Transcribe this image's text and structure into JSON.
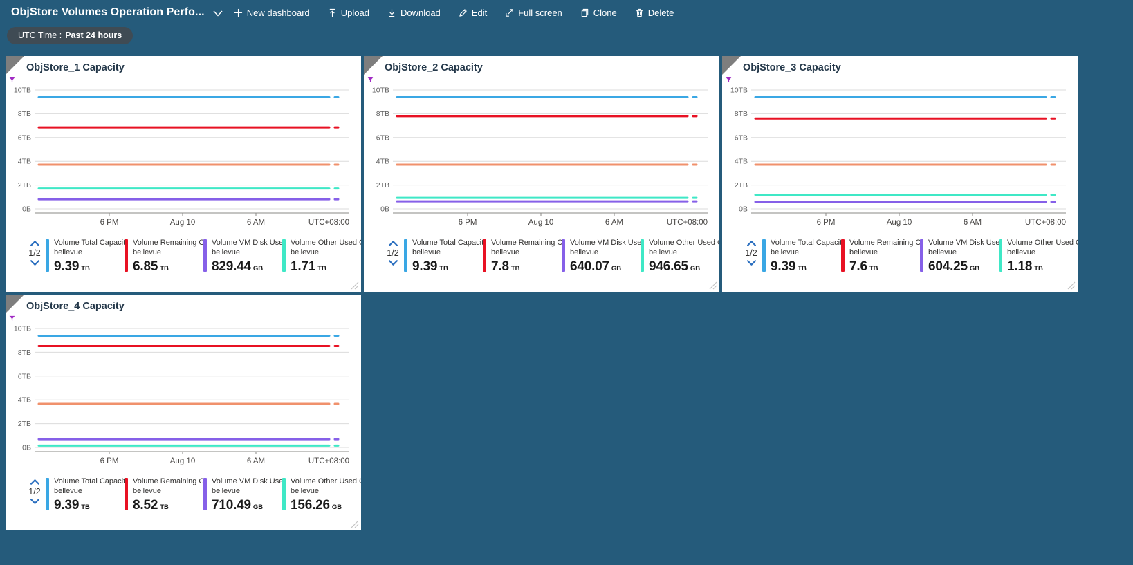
{
  "toolbar": {
    "title": "ObjStore Volumes Operation Perfo...",
    "buttons": [
      {
        "id": "new-dashboard",
        "label": "New dashboard",
        "icon": "plus-icon"
      },
      {
        "id": "upload",
        "label": "Upload",
        "icon": "upload-icon"
      },
      {
        "id": "download",
        "label": "Download",
        "icon": "download-icon"
      },
      {
        "id": "edit",
        "label": "Edit",
        "icon": "edit-icon"
      },
      {
        "id": "fullscreen",
        "label": "Full screen",
        "icon": "fullscreen-icon"
      },
      {
        "id": "clone",
        "label": "Clone",
        "icon": "clone-icon"
      },
      {
        "id": "delete",
        "label": "Delete",
        "icon": "delete-icon"
      }
    ]
  },
  "time_filter": {
    "label": "UTC Time :",
    "value": "Past 24 hours"
  },
  "colors": {
    "background": "#255B7B",
    "pill": "#3F4B54",
    "blue": "#3AA7E4",
    "red": "#E81123",
    "orange": "#F0916C",
    "teal": "#3FE8C6",
    "purple": "#8660E8",
    "funnel": "#A12BC4"
  },
  "axis": {
    "y_ticks": [
      "10TB",
      "8TB",
      "6TB",
      "4TB",
      "2TB",
      "0B"
    ],
    "y_tick_values_tb": [
      10,
      8,
      6,
      4,
      2,
      0
    ],
    "x_ticks": [
      "6 PM",
      "Aug 10",
      "6 AM"
    ],
    "x_right_label": "UTC+08:00"
  },
  "charts": [
    {
      "title": "ObjStore_1 Capacity",
      "pagination": "1/2",
      "legend": [
        {
          "label": "Volume Total Capacit...",
          "sub": "bellevue",
          "value": "9.39",
          "unit": "TB",
          "color": "#3AA7E4"
        },
        {
          "label": "Volume Remaining Cap...",
          "sub": "bellevue",
          "value": "6.85",
          "unit": "TB",
          "color": "#E81123"
        },
        {
          "label": "Volume VM Disk Used ...",
          "sub": "bellevue",
          "value": "829.44",
          "unit": "GB",
          "color": "#8660E8"
        },
        {
          "label": "Volume Other Used Ca...",
          "sub": "bellevue",
          "value": "1.71",
          "unit": "TB",
          "color": "#3FE8C6"
        }
      ]
    },
    {
      "title": "ObjStore_2 Capacity",
      "pagination": "1/2",
      "legend": [
        {
          "label": "Volume Total Capacit...",
          "sub": "bellevue",
          "value": "9.39",
          "unit": "TB",
          "color": "#3AA7E4"
        },
        {
          "label": "Volume Remaining Cap...",
          "sub": "bellevue",
          "value": "7.8",
          "unit": "TB",
          "color": "#E81123"
        },
        {
          "label": "Volume VM Disk Used ...",
          "sub": "bellevue",
          "value": "640.07",
          "unit": "GB",
          "color": "#8660E8"
        },
        {
          "label": "Volume Other Used Ca...",
          "sub": "bellevue",
          "value": "946.65",
          "unit": "GB",
          "color": "#3FE8C6"
        }
      ]
    },
    {
      "title": "ObjStore_3 Capacity",
      "pagination": "1/2",
      "legend": [
        {
          "label": "Volume Total Capacit...",
          "sub": "bellevue",
          "value": "9.39",
          "unit": "TB",
          "color": "#3AA7E4"
        },
        {
          "label": "Volume Remaining Cap...",
          "sub": "bellevue",
          "value": "7.6",
          "unit": "TB",
          "color": "#E81123"
        },
        {
          "label": "Volume VM Disk Used ...",
          "sub": "bellevue",
          "value": "604.25",
          "unit": "GB",
          "color": "#8660E8"
        },
        {
          "label": "Volume Other Used Ca...",
          "sub": "bellevue",
          "value": "1.18",
          "unit": "TB",
          "color": "#3FE8C6"
        }
      ]
    },
    {
      "title": "ObjStore_4 Capacity",
      "pagination": "1/2",
      "legend": [
        {
          "label": "Volume Total Capacit...",
          "sub": "bellevue",
          "value": "9.39",
          "unit": "TB",
          "color": "#3AA7E4"
        },
        {
          "label": "Volume Remaining Cap...",
          "sub": "bellevue",
          "value": "8.52",
          "unit": "TB",
          "color": "#E81123"
        },
        {
          "label": "Volume VM Disk Used ...",
          "sub": "bellevue",
          "value": "710.49",
          "unit": "GB",
          "color": "#8660E8"
        },
        {
          "label": "Volume Other Used Ca...",
          "sub": "bellevue",
          "value": "156.26",
          "unit": "GB",
          "color": "#3FE8C6"
        }
      ]
    }
  ],
  "chart_data": [
    {
      "type": "line",
      "title": "ObjStore_1 Capacity",
      "x_ticks": [
        "6 PM",
        "Aug 10",
        "6 AM"
      ],
      "x_right_label": "UTC+08:00",
      "ylim_tb": [
        0,
        10
      ],
      "y_ticks": [
        "0B",
        "2TB",
        "4TB",
        "6TB",
        "8TB",
        "10TB"
      ],
      "series": [
        {
          "name": "Volume Total Capacit...",
          "color": "#3AA7E4",
          "constant_value_tb": 9.39
        },
        {
          "name": "Volume Remaining Cap...",
          "color": "#E81123",
          "constant_value_tb": 6.85
        },
        {
          "name": "",
          "color": "#F0916C",
          "constant_value_tb": 3.72
        },
        {
          "name": "Volume Other Used Ca...",
          "color": "#3FE8C6",
          "constant_value_tb": 1.71
        },
        {
          "name": "Volume VM Disk Used ...",
          "color": "#8660E8",
          "constant_value_tb": 0.81
        }
      ]
    },
    {
      "type": "line",
      "title": "ObjStore_2 Capacity",
      "x_ticks": [
        "6 PM",
        "Aug 10",
        "6 AM"
      ],
      "x_right_label": "UTC+08:00",
      "ylim_tb": [
        0,
        10
      ],
      "y_ticks": [
        "0B",
        "2TB",
        "4TB",
        "6TB",
        "8TB",
        "10TB"
      ],
      "series": [
        {
          "name": "Volume Total Capacit...",
          "color": "#3AA7E4",
          "constant_value_tb": 9.39
        },
        {
          "name": "Volume Remaining Cap...",
          "color": "#E81123",
          "constant_value_tb": 7.8
        },
        {
          "name": "",
          "color": "#F0916C",
          "constant_value_tb": 3.72
        },
        {
          "name": "Volume Other Used Ca...",
          "color": "#3FE8C6",
          "constant_value_tb": 0.92
        },
        {
          "name": "Volume VM Disk Used ...",
          "color": "#8660E8",
          "constant_value_tb": 0.63
        }
      ]
    },
    {
      "type": "line",
      "title": "ObjStore_3 Capacity",
      "x_ticks": [
        "6 PM",
        "Aug 10",
        "6 AM"
      ],
      "x_right_label": "UTC+08:00",
      "ylim_tb": [
        0,
        10
      ],
      "y_ticks": [
        "0B",
        "2TB",
        "4TB",
        "6TB",
        "8TB",
        "10TB"
      ],
      "series": [
        {
          "name": "Volume Total Capacit...",
          "color": "#3AA7E4",
          "constant_value_tb": 9.39
        },
        {
          "name": "Volume Remaining Cap...",
          "color": "#E81123",
          "constant_value_tb": 7.6
        },
        {
          "name": "",
          "color": "#F0916C",
          "constant_value_tb": 3.72
        },
        {
          "name": "Volume Other Used Ca...",
          "color": "#3FE8C6",
          "constant_value_tb": 1.18
        },
        {
          "name": "Volume VM Disk Used ...",
          "color": "#8660E8",
          "constant_value_tb": 0.59
        }
      ]
    },
    {
      "type": "line",
      "title": "ObjStore_4 Capacity",
      "x_ticks": [
        "6 PM",
        "Aug 10",
        "6 AM"
      ],
      "x_right_label": "UTC+08:00",
      "ylim_tb": [
        0,
        10
      ],
      "y_ticks": [
        "0B",
        "2TB",
        "4TB",
        "6TB",
        "8TB",
        "10TB"
      ],
      "series": [
        {
          "name": "Volume Total Capacit...",
          "color": "#3AA7E4",
          "constant_value_tb": 9.39
        },
        {
          "name": "Volume Remaining Cap...",
          "color": "#E81123",
          "constant_value_tb": 8.52
        },
        {
          "name": "",
          "color": "#F0916C",
          "constant_value_tb": 3.66
        },
        {
          "name": "Volume VM Disk Used ...",
          "color": "#8660E8",
          "constant_value_tb": 0.69
        },
        {
          "name": "Volume Other Used Ca...",
          "color": "#3FE8C6",
          "constant_value_tb": 0.15
        }
      ]
    }
  ]
}
